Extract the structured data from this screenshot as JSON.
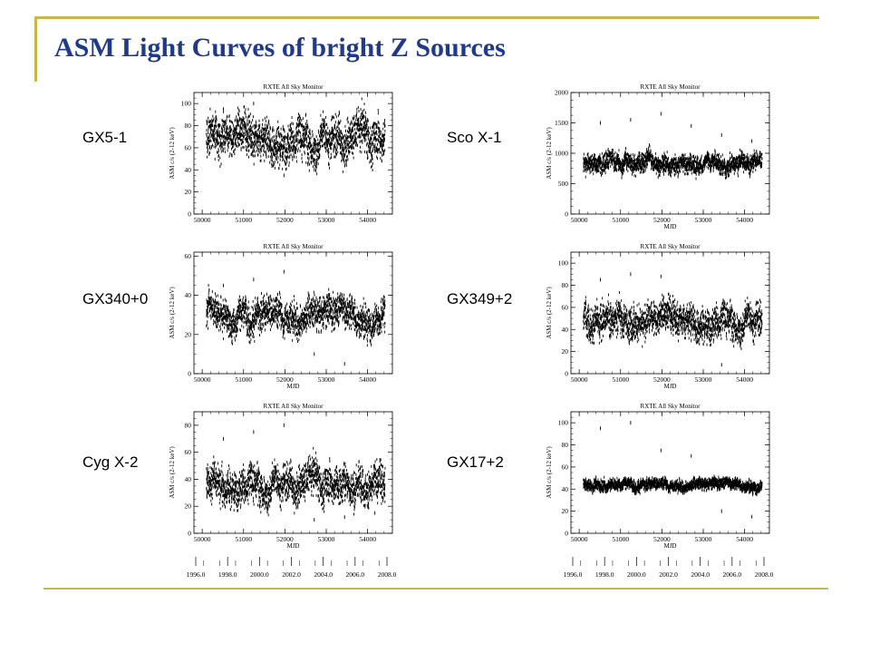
{
  "slide": {
    "title": "ASM Light Curves of bright Z Sources",
    "accent_color": "#c8b84a",
    "title_color": "#1f3a8a"
  },
  "year_axis": {
    "ticks": [
      "1996.0",
      "1998.0",
      "2000.0",
      "2002.0",
      "2004.0",
      "2006.0",
      "2008.0"
    ]
  },
  "chart_data": [
    {
      "type": "scatter",
      "source_label": "GX5-1",
      "title": "RXTE All Sky Monitor",
      "xlabel": "",
      "ylabel": "ASM c/s (2-12 keV)",
      "xlim": [
        49800,
        54600
      ],
      "ylim": [
        0,
        110
      ],
      "xticks": [
        50000,
        51000,
        52000,
        53000,
        54000
      ],
      "yticks": [
        0,
        20,
        40,
        60,
        80,
        100
      ],
      "series": [
        {
          "mean": 70,
          "spread": 11,
          "jitter": 3,
          "outliers": [
            95,
            100,
            35,
            40
          ]
        }
      ]
    },
    {
      "type": "scatter",
      "source_label": "Sco X-1",
      "title": "RXTE All Sky Monitor",
      "xlabel": "MJD",
      "ylabel": "ASM c/s (2-12 keV)",
      "xlim": [
        49800,
        54600
      ],
      "ylim": [
        0,
        2000
      ],
      "xticks": [
        50000,
        51000,
        52000,
        53000,
        54000
      ],
      "yticks": [
        0,
        500,
        1000,
        1500,
        2000
      ],
      "series": [
        {
          "mean": 860,
          "spread": 90,
          "jitter": 40,
          "outliers": [
            1500,
            1550,
            1650,
            1450,
            1300,
            1200
          ]
        }
      ]
    },
    {
      "type": "scatter",
      "source_label": "GX340+0",
      "title": "RXTE All Sky Monitor",
      "xlabel": "MJD",
      "ylabel": "ASM c/s (2-12 keV)",
      "xlim": [
        49800,
        54600
      ],
      "ylim": [
        0,
        62
      ],
      "xticks": [
        50000,
        51000,
        52000,
        53000,
        54000
      ],
      "yticks": [
        0,
        20,
        40,
        60
      ],
      "series": [
        {
          "mean": 30,
          "spread": 5,
          "jitter": 2,
          "outliers": [
            45,
            48,
            52,
            10,
            5
          ]
        }
      ]
    },
    {
      "type": "scatter",
      "source_label": "GX349+2",
      "title": "RXTE All Sky Monitor",
      "xlabel": "MJD",
      "ylabel": "ASM c/s (2-12 keV)",
      "xlim": [
        49800,
        54600
      ],
      "ylim": [
        0,
        110
      ],
      "xticks": [
        50000,
        51000,
        52000,
        53000,
        54000
      ],
      "yticks": [
        0,
        20,
        40,
        60,
        80,
        100
      ],
      "series": [
        {
          "mean": 50,
          "spread": 9,
          "jitter": 4,
          "outliers": [
            85,
            90,
            88,
            30,
            8
          ]
        }
      ]
    },
    {
      "type": "scatter",
      "source_label": "Cyg X-2",
      "title": "RXTE All Sky Monitor",
      "xlabel": "MJD",
      "ylabel": "ASM c/s (2-12 keV)",
      "xlim": [
        49800,
        54600
      ],
      "ylim": [
        0,
        90
      ],
      "xticks": [
        50000,
        51000,
        52000,
        53000,
        54000
      ],
      "yticks": [
        0,
        20,
        40,
        60,
        80
      ],
      "series": [
        {
          "mean": 38,
          "spread": 8,
          "jitter": 3,
          "outliers": [
            70,
            75,
            80,
            10,
            12,
            15
          ]
        }
      ]
    },
    {
      "type": "scatter",
      "source_label": "GX17+2",
      "title": "RXTE All Sky Monitor",
      "xlabel": "MJD",
      "ylabel": "ASM c/s (2-12 keV)",
      "xlim": [
        49800,
        54600
      ],
      "ylim": [
        0,
        110
      ],
      "xticks": [
        50000,
        51000,
        52000,
        53000,
        54000
      ],
      "yticks": [
        0,
        20,
        40,
        60,
        80,
        100
      ],
      "series": [
        {
          "mean": 44,
          "spread": 3,
          "jitter": 2,
          "outliers": [
            95,
            100,
            75,
            70,
            20,
            15
          ]
        }
      ]
    }
  ]
}
